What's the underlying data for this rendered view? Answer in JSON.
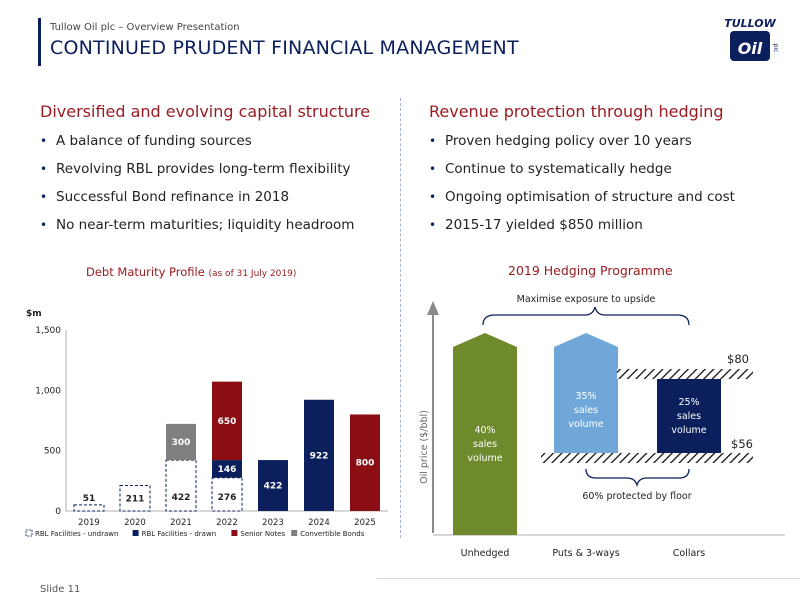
{
  "header": {
    "subtitle": "Tullow Oil plc – Overview Presentation",
    "title": "CONTINUED PRUDENT FINANCIAL MANAGEMENT",
    "logo_text": "TULLOW",
    "logo_mark": "Oil",
    "logo_tag": "plc"
  },
  "left": {
    "heading": "Diversified and evolving capital structure",
    "bullets": [
      "A balance of funding sources",
      "Revolving RBL provides long-term flexibility",
      "Successful Bond refinance in 2018",
      "No near-term maturities; liquidity headroom"
    ]
  },
  "right": {
    "heading": "Revenue protection through hedging",
    "bullets": [
      "Proven hedging policy over 10 years",
      "Continue to systematically hedge",
      "Ongoing optimisation of structure and cost",
      "2015-17 yielded $850 million"
    ]
  },
  "debt_chart_title": "Debt Maturity Profile",
  "debt_chart_title_note": "(as of 31 July 2019)",
  "hedge_chart_title": "2019 Hedging Programme",
  "footer": {
    "slide": "Slide 11"
  },
  "colors": {
    "navy": "#0a1f5c",
    "maroon": "#8b0e14",
    "grey": "#7f7f7f",
    "olive": "#6e8a2c",
    "lightblue": "#6fa8d8"
  },
  "chart_data": [
    {
      "type": "bar",
      "stacked": true,
      "title": "Debt Maturity Profile",
      "ylabel": "$m",
      "ylim": [
        0,
        1500
      ],
      "yticks": [
        "0",
        "500",
        "1,000",
        "1,500"
      ],
      "yticks_values": [
        0,
        500,
        1000,
        1500
      ],
      "categories": [
        "2019",
        "2020",
        "2021",
        "2022",
        "2023",
        "2024",
        "2025"
      ],
      "series": [
        {
          "name": "RBL Facilities - undrawn",
          "values": [
            51,
            211,
            422,
            276,
            0,
            0,
            0
          ],
          "labels": [
            "51",
            "211",
            "422",
            "276",
            "",
            "",
            ""
          ]
        },
        {
          "name": "RBL Facilities - drawn",
          "values": [
            0,
            0,
            0,
            146,
            422,
            922,
            0
          ],
          "labels": [
            "",
            "",
            "",
            "146",
            "422",
            "922",
            ""
          ]
        },
        {
          "name": "Senior Notes",
          "values": [
            0,
            0,
            0,
            650,
            0,
            0,
            800
          ],
          "labels": [
            "",
            "",
            "",
            "650",
            "",
            "",
            "800"
          ]
        },
        {
          "name": "Convertible Bonds",
          "values": [
            0,
            0,
            300,
            0,
            0,
            0,
            0
          ],
          "labels": [
            "",
            "",
            "300",
            "",
            "",
            "",
            ""
          ]
        }
      ],
      "legend_position": "bottom",
      "grid": false
    },
    {
      "type": "diagram",
      "title": "2019 Hedging Programme",
      "y_axis_label": "Oil price ($/bbl)",
      "categories": [
        "Unhedged",
        "Puts & 3-ways",
        "Collars"
      ],
      "bars": [
        {
          "category": "Unhedged",
          "lines": [
            "40%",
            "sales",
            "volume"
          ]
        },
        {
          "category": "Puts & 3-ways",
          "lines": [
            "35%",
            "sales",
            "volume"
          ]
        },
        {
          "category": "Collars",
          "lines": [
            "25%",
            "sales",
            "volume"
          ]
        }
      ],
      "ceiling_label": "$80",
      "floor_label": "$56",
      "upside_label": "Maximise exposure to upside",
      "floor_note": "60% protected by floor"
    }
  ]
}
